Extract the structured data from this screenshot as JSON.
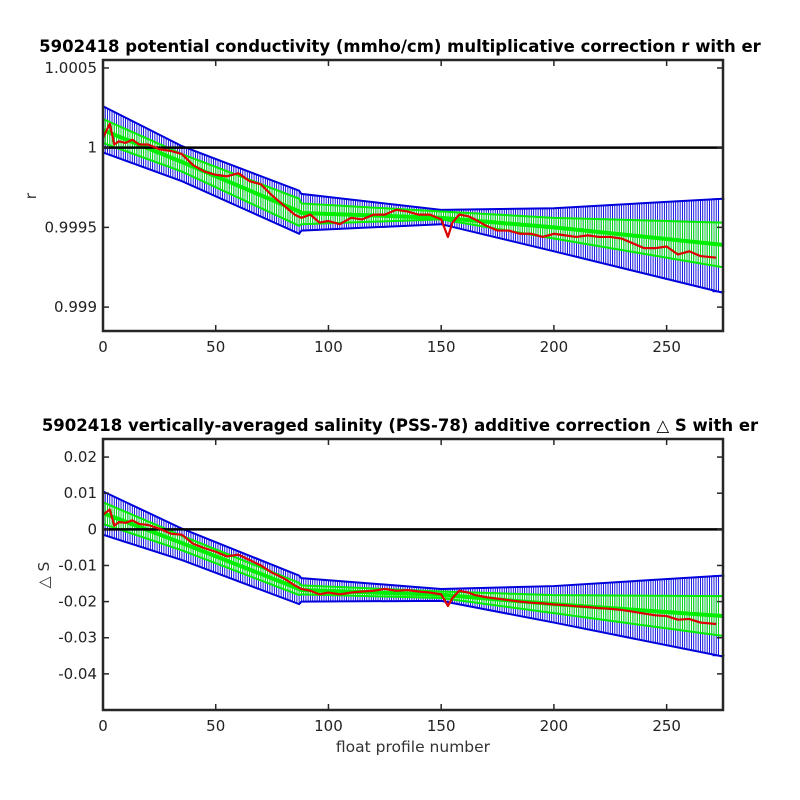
{
  "chart_data": [
    {
      "type": "line",
      "title": "5902418 potential conductivity (mmho/cm) multiplicative correction r with er",
      "xlabel": "",
      "ylabel": "r",
      "xlim": [
        0,
        275
      ],
      "ylim": [
        0.99885,
        1.00055
      ],
      "x_ticks": [
        "0",
        "50",
        "100",
        "150",
        "200",
        "250"
      ],
      "x_tick_values": [
        0,
        50,
        100,
        150,
        200,
        250
      ],
      "y_ticks": [
        "0.999",
        "0.9995",
        "1",
        "1.0005"
      ],
      "y_tick_values": [
        0.999,
        0.9995,
        1.0,
        1.0005
      ],
      "reference_line": 1.0,
      "colors": {
        "measured": "#dd0000",
        "fit": "#00ee00",
        "error": "#0000dd",
        "reference": "#000000"
      },
      "series": [
        {
          "role": "error-band-2sigma",
          "x": [
            0,
            35,
            87,
            88,
            150,
            200,
            275
          ],
          "upper": [
            1.00026,
            1.00001,
            0.99973,
            0.99971,
            0.99961,
            0.99962,
            0.99968
          ],
          "lower": [
            0.99997,
            0.99979,
            0.99946,
            0.99948,
            0.99952,
            0.99935,
            0.99909
          ]
        },
        {
          "role": "error-band-1sigma",
          "x": [
            0,
            35,
            87,
            88,
            150,
            200,
            275
          ],
          "upper": [
            1.00018,
            0.99996,
            0.99968,
            0.99965,
            0.9996,
            0.99956,
            0.99953
          ],
          "lower": [
            1.00003,
            0.99985,
            0.99951,
            0.99952,
            0.99955,
            0.99943,
            0.99925
          ]
        },
        {
          "role": "fit",
          "x": [
            0,
            35,
            87,
            88,
            150,
            200,
            275
          ],
          "y": [
            1.00011,
            0.99991,
            0.9996,
            0.99959,
            0.99956,
            0.9995,
            0.99939
          ]
        },
        {
          "role": "measured",
          "x": [
            0,
            3,
            5,
            7,
            10,
            13,
            16,
            20,
            25,
            30,
            35,
            40,
            45,
            50,
            55,
            60,
            65,
            70,
            75,
            80,
            85,
            88,
            92,
            96,
            100,
            105,
            110,
            115,
            120,
            125,
            130,
            135,
            140,
            145,
            150,
            153,
            155,
            158,
            162,
            165,
            170,
            175,
            180,
            185,
            190,
            195,
            200,
            205,
            210,
            215,
            220,
            225,
            230,
            235,
            240,
            245,
            250,
            255,
            260,
            265,
            272
          ],
          "y": [
            1.00006,
            1.00015,
            1.00002,
            1.00004,
            1.00003,
            1.00005,
            1.00002,
            1.00002,
            0.99999,
            0.99998,
            0.99996,
            0.99989,
            0.99985,
            0.99983,
            0.99982,
            0.99984,
            0.99979,
            0.99977,
            0.9997,
            0.99964,
            0.99958,
            0.99956,
            0.99958,
            0.99953,
            0.99954,
            0.99952,
            0.99956,
            0.99955,
            0.99958,
            0.99958,
            0.99961,
            0.9996,
            0.99958,
            0.99958,
            0.99955,
            0.99944,
            0.99953,
            0.99958,
            0.99957,
            0.99955,
            0.99951,
            0.99948,
            0.99948,
            0.99946,
            0.99946,
            0.99944,
            0.99946,
            0.99945,
            0.99944,
            0.99945,
            0.99944,
            0.99944,
            0.99943,
            0.9994,
            0.99937,
            0.99937,
            0.99938,
            0.99933,
            0.99935,
            0.99932,
            0.99931
          ]
        }
      ]
    },
    {
      "type": "line",
      "title": "5902418 vertically-averaged salinity (PSS-78) additive correction △ S with er",
      "xlabel": "float profile number",
      "ylabel": "△ S",
      "xlim": [
        0,
        275
      ],
      "ylim": [
        -0.05,
        0.025
      ],
      "x_ticks": [
        "0",
        "50",
        "100",
        "150",
        "200",
        "250"
      ],
      "x_tick_values": [
        0,
        50,
        100,
        150,
        200,
        250
      ],
      "y_ticks": [
        "-0.04",
        "-0.03",
        "-0.02",
        "-0.01",
        "0",
        "0.01",
        "0.02"
      ],
      "y_tick_values": [
        -0.04,
        -0.03,
        -0.02,
        -0.01,
        0,
        0.01,
        0.02
      ],
      "reference_line": 0,
      "colors": {
        "measured": "#dd0000",
        "fit": "#00ee00",
        "error": "#0000dd",
        "reference": "#000000"
      },
      "series": [
        {
          "role": "error-band-2sigma",
          "x": [
            0,
            35,
            87,
            88,
            150,
            200,
            275
          ],
          "upper": [
            0.0105,
            0.0002,
            -0.0128,
            -0.0135,
            -0.0165,
            -0.0157,
            -0.0128
          ],
          "lower": [
            -0.0015,
            -0.0085,
            -0.0207,
            -0.02,
            -0.0198,
            -0.0258,
            -0.0352
          ],
          "cap_x": [
            0,
            88,
            150,
            200,
            275
          ]
        },
        {
          "role": "error-band-1sigma",
          "x": [
            0,
            35,
            87,
            88,
            150,
            200,
            275
          ],
          "upper": [
            0.0075,
            -0.0018,
            -0.0148,
            -0.0155,
            -0.0172,
            -0.0182,
            -0.0185
          ],
          "lower": [
            0.0015,
            -0.0058,
            -0.0182,
            -0.018,
            -0.019,
            -0.0232,
            -0.0295
          ]
        },
        {
          "role": "fit",
          "x": [
            0,
            35,
            87,
            88,
            150,
            200,
            275
          ],
          "y": [
            0.0045,
            -0.0038,
            -0.0165,
            -0.0168,
            -0.0181,
            -0.0207,
            -0.024
          ]
        },
        {
          "role": "measured",
          "x": [
            0,
            3,
            5,
            7,
            10,
            13,
            16,
            20,
            25,
            30,
            35,
            40,
            45,
            50,
            55,
            60,
            65,
            70,
            75,
            80,
            85,
            88,
            92,
            96,
            100,
            105,
            110,
            115,
            120,
            125,
            130,
            135,
            140,
            145,
            150,
            153,
            155,
            158,
            162,
            165,
            170,
            175,
            180,
            185,
            190,
            195,
            200,
            205,
            210,
            215,
            220,
            225,
            230,
            235,
            240,
            245,
            250,
            255,
            260,
            265,
            272
          ],
          "y": [
            0.004,
            0.0055,
            0.001,
            0.002,
            0.0018,
            0.0025,
            0.0015,
            0.0012,
            0.0002,
            -0.0012,
            -0.0015,
            -0.004,
            -0.0052,
            -0.0062,
            -0.0075,
            -0.007,
            -0.0085,
            -0.01,
            -0.012,
            -0.0135,
            -0.0155,
            -0.0165,
            -0.017,
            -0.018,
            -0.0175,
            -0.018,
            -0.0175,
            -0.0172,
            -0.017,
            -0.0165,
            -0.017,
            -0.0168,
            -0.0172,
            -0.0175,
            -0.018,
            -0.0212,
            -0.019,
            -0.017,
            -0.0175,
            -0.0182,
            -0.0188,
            -0.0192,
            -0.0196,
            -0.02,
            -0.0203,
            -0.0205,
            -0.0208,
            -0.021,
            -0.0213,
            -0.0215,
            -0.0218,
            -0.022,
            -0.0223,
            -0.0228,
            -0.0233,
            -0.0238,
            -0.024,
            -0.025,
            -0.0248,
            -0.0258,
            -0.0262
          ]
        }
      ]
    }
  ]
}
